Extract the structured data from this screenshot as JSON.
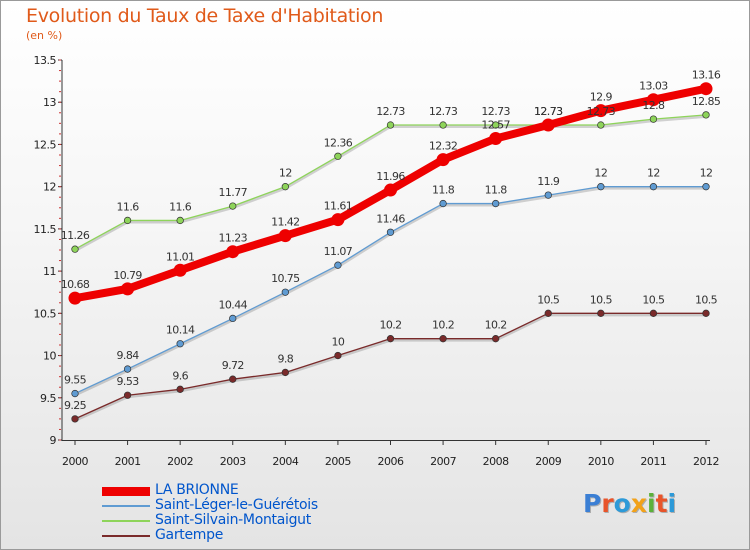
{
  "title": "Evolution du Taux de Taxe d'Habitation",
  "subtitle": "(en %)",
  "logo": {
    "text": "Proxiti",
    "colors": [
      "#3b7fd4",
      "#e8542a",
      "#2d9ad8",
      "#f2a21a",
      "#5bb13a",
      "#e8542a",
      "#2d9ad8"
    ]
  },
  "chart_data": {
    "type": "line",
    "title": "Evolution du Taux de Taxe d'Habitation",
    "subtitle": "(en %)",
    "x": [
      "2000",
      "2001",
      "2002",
      "2003",
      "2004",
      "2005",
      "2006",
      "2007",
      "2008",
      "2009",
      "2010",
      "2011",
      "2012"
    ],
    "ylim": [
      9,
      13.5
    ],
    "yticks": [
      "9",
      "9.5",
      "10",
      "10.5",
      "11",
      "11.5",
      "12",
      "12.5",
      "13",
      "13.5"
    ],
    "grid": false,
    "legend_position": "bottom-left",
    "series": [
      {
        "name": "LA BRIONNE",
        "color": "#ee0000",
        "values": [
          10.68,
          10.79,
          11.01,
          11.23,
          11.42,
          11.61,
          11.96,
          12.32,
          12.57,
          12.73,
          12.9,
          13.03,
          13.16
        ],
        "labels": [
          "10.68",
          "10.79",
          "11.01",
          "11.23",
          "11.42",
          "11.61",
          "11.96",
          "12.32",
          "12.57",
          "12.73",
          "12.9",
          "13.03",
          "13.16"
        ]
      },
      {
        "name": "Saint-Léger-le-Guérétois",
        "color": "#5f9bd2",
        "values": [
          9.55,
          9.84,
          10.14,
          10.44,
          10.75,
          11.07,
          11.46,
          11.8,
          11.8,
          11.9,
          12,
          12,
          12
        ],
        "labels": [
          "9.55",
          "9.84",
          "10.14",
          "10.44",
          "10.75",
          "11.07",
          "11.46",
          "11.8",
          "11.8",
          "11.9",
          "12",
          "12",
          "12"
        ]
      },
      {
        "name": "Saint-Silvain-Montaigut",
        "color": "#8ed45a",
        "values": [
          11.26,
          11.6,
          11.6,
          11.77,
          12,
          12.36,
          12.73,
          12.73,
          12.73,
          12.73,
          12.73,
          12.8,
          12.85
        ],
        "labels": [
          "11.26",
          "11.6",
          "11.6",
          "11.77",
          "12",
          "12.36",
          "12.73",
          "12.73",
          "12.73",
          "12.73",
          "12.73",
          "12.8",
          "12.85"
        ]
      },
      {
        "name": "Gartempe",
        "color": "#7a2a2a",
        "values": [
          9.25,
          9.53,
          9.6,
          9.72,
          9.8,
          10,
          10.2,
          10.2,
          10.2,
          10.5,
          10.5,
          10.5,
          10.5
        ],
        "labels": [
          "9.25",
          "9.53",
          "9.6",
          "9.72",
          "9.8",
          "10",
          "10.2",
          "10.2",
          "10.2",
          "10.5",
          "10.5",
          "10.5",
          "10.5"
        ]
      }
    ]
  }
}
